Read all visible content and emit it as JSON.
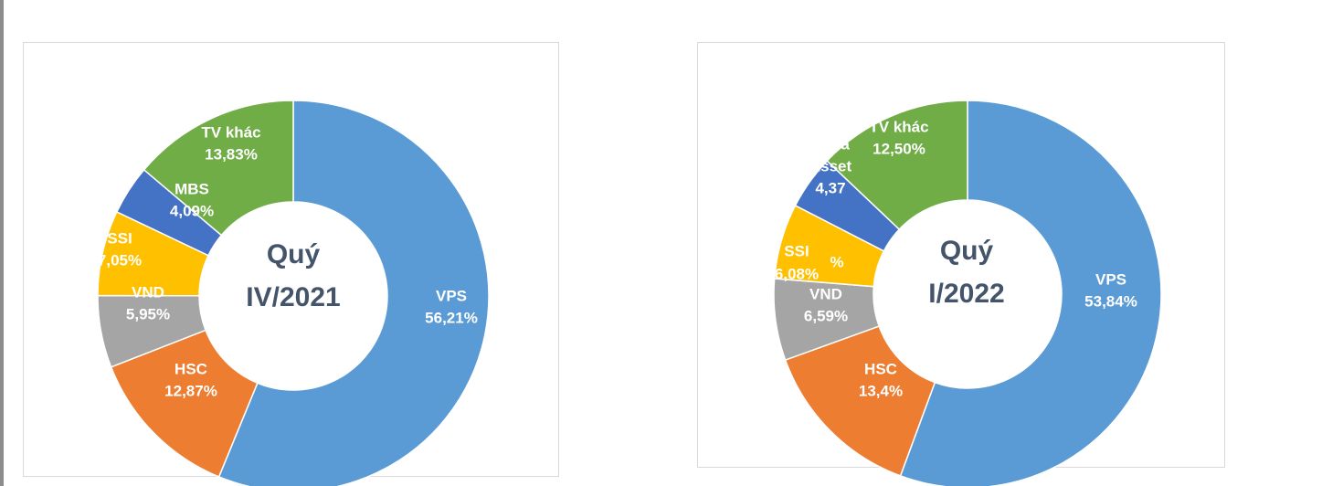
{
  "chart_data": [
    {
      "type": "pie",
      "style": "donut",
      "title": "Quý IV/2021",
      "center_label": [
        "Quý",
        "IV/2021"
      ],
      "start_at": "top",
      "direction": "clockwise",
      "slices": [
        {
          "name": "VPS",
          "value": 56.21,
          "label_lines": [
            "VPS",
            "56,21%"
          ],
          "color": "#5b9bd5"
        },
        {
          "name": "HSC",
          "value": 12.87,
          "label_lines": [
            "HSC",
            "12,87%"
          ],
          "color": "#ed7d31"
        },
        {
          "name": "VND",
          "value": 5.95,
          "label_lines": [
            "VND",
            "5,95%"
          ],
          "color": "#a5a5a5"
        },
        {
          "name": "SSI",
          "value": 7.05,
          "label_lines": [
            "SSI",
            "7,05%"
          ],
          "color": "#ffc000"
        },
        {
          "name": "MBS",
          "value": 4.09,
          "label_lines": [
            "MBS",
            "4,09%"
          ],
          "color": "#4472c4"
        },
        {
          "name": "TV khác",
          "value": 13.83,
          "label_lines": [
            "TV khác",
            "13,83%"
          ],
          "color": "#70ad47"
        }
      ]
    },
    {
      "type": "pie",
      "style": "donut",
      "title": "Quý I/2022",
      "center_label": [
        "Quý",
        "I/2022"
      ],
      "start_at": "top",
      "direction": "clockwise",
      "slices": [
        {
          "name": "VPS",
          "value": 53.84,
          "label_lines": [
            "VPS",
            "53,84%"
          ],
          "color": "#5b9bd5"
        },
        {
          "name": "HSC",
          "value": 13.4,
          "label_lines": [
            "HSC",
            "13,4%"
          ],
          "color": "#ed7d31"
        },
        {
          "name": "VND",
          "value": 6.59,
          "label_lines": [
            "VND",
            "6,59%"
          ],
          "color": "#a5a5a5"
        },
        {
          "name": "SSI",
          "value": 6.08,
          "label_lines": [
            "SSI",
            "6,08%",
            "%"
          ],
          "color": "#ffc000"
        },
        {
          "name": "Mirra Asset",
          "value": 4.37,
          "label_lines": [
            "Mirra",
            "Asset",
            "4,37"
          ],
          "color": "#4472c4"
        },
        {
          "name": "TV khác",
          "value": 12.5,
          "label_lines": [
            "TV khác",
            "12,50%"
          ],
          "color": "#70ad47"
        }
      ]
    }
  ]
}
